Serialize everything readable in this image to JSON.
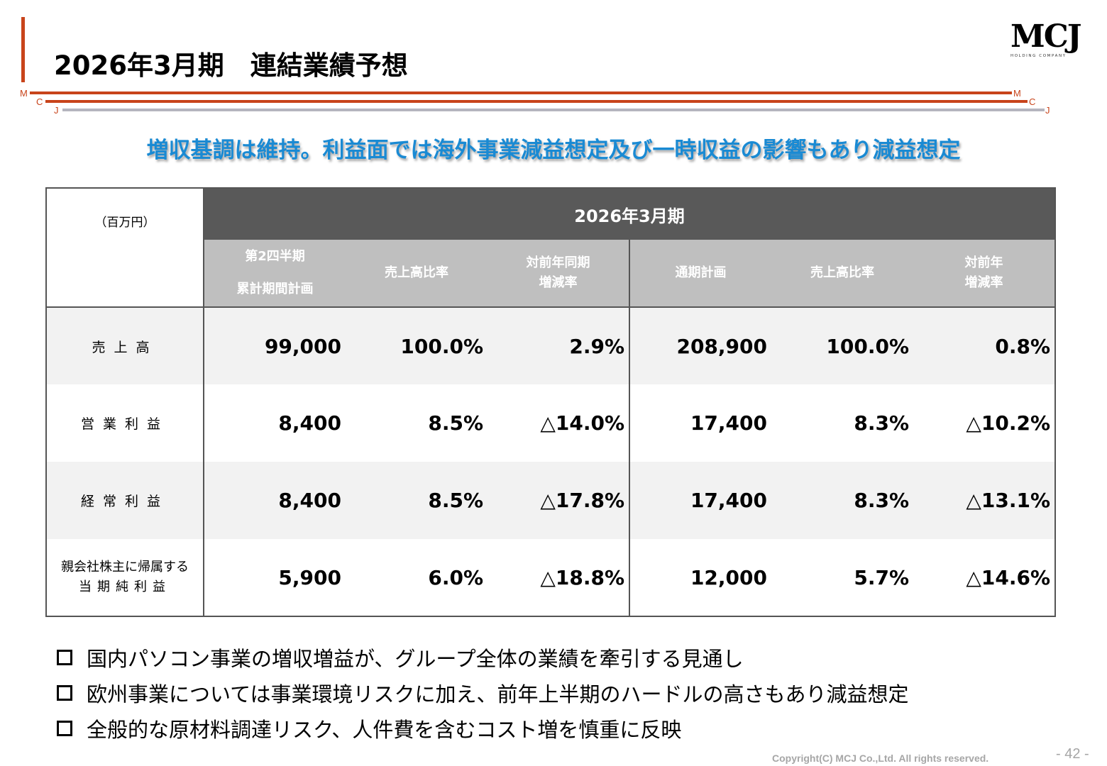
{
  "header": {
    "title": "2026年3月期　連結業績予想",
    "logo_text": "MCJ",
    "logo_sub": "HOLDING COMPANY",
    "rule_letters": [
      "M",
      "C",
      "J",
      "M",
      "C",
      "J"
    ]
  },
  "headline": "増収基調は維持。利益面では海外事業減益想定及び一時収益の影響もあり減益想定",
  "table": {
    "unit": "（百万円）",
    "period": "2026年3月期",
    "columns": [
      {
        "l1": "第2四半期",
        "l2": "累計期間計画"
      },
      {
        "l1": "売上高比率",
        "l2": ""
      },
      {
        "l1": "対前年同期",
        "l2": "増減率"
      },
      {
        "l1": "通期計画",
        "l2": ""
      },
      {
        "l1": "売上高比率",
        "l2": ""
      },
      {
        "l1": "対前年",
        "l2": "増減率"
      }
    ],
    "rows": [
      {
        "label": "売上高",
        "label2": "",
        "values": [
          "99,000",
          "100.0%",
          "2.9%",
          "208,900",
          "100.0%",
          "0.8%"
        ]
      },
      {
        "label": "営業利益",
        "label2": "",
        "values": [
          "8,400",
          "8.5%",
          "△14.0%",
          "17,400",
          "8.3%",
          "△10.2%"
        ]
      },
      {
        "label": "経常利益",
        "label2": "",
        "values": [
          "8,400",
          "8.5%",
          "△17.8%",
          "17,400",
          "8.3%",
          "△13.1%"
        ]
      },
      {
        "label": "親会社株主に帰属する",
        "label2": "当期純利益",
        "values": [
          "5,900",
          "6.0%",
          "△18.8%",
          "12,000",
          "5.7%",
          "△14.6%"
        ]
      }
    ]
  },
  "bullets": [
    "国内パソコン事業の増収増益が、グループ全体の業績を牽引する見通し",
    "欧州事業については事業環境リスクに加え、前年上半期のハードルの高さもあり減益想定",
    "全般的な原材料調達リスク、人件費を含むコスト増を慎重に反映"
  ],
  "footer": {
    "copyright": "Copyright(C) MCJ Co.,Ltd. All rights reserved.",
    "page": "- 42 -"
  },
  "colors": {
    "accent": "#c8441b",
    "headline": "#1a8ad3",
    "header_dark": "#595959",
    "header_light": "#bfbfbf"
  }
}
